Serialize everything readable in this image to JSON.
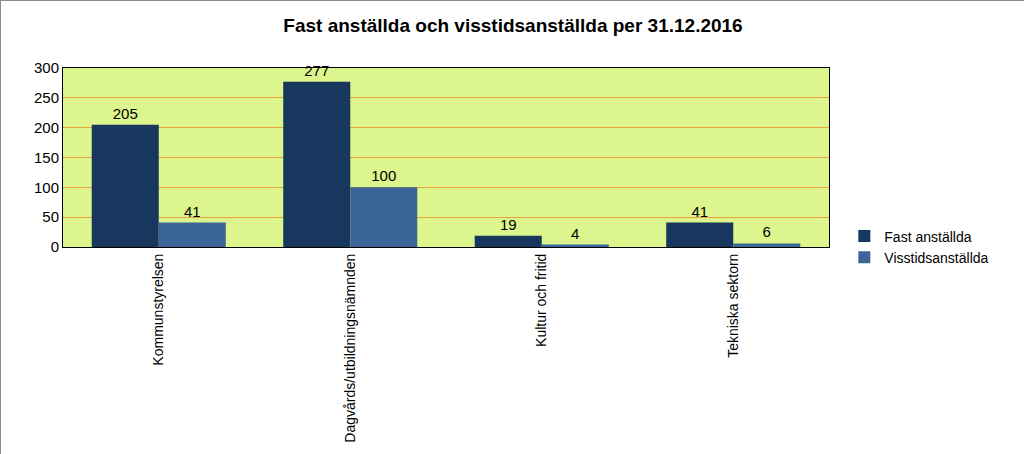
{
  "chart_data": {
    "type": "bar",
    "title": "Fast anställda och visstidsanställda per 31.12.2016",
    "categories": [
      "Kommunstyrelsen",
      "Dagvårds/utbildningsnämnden",
      "Kultur och fritid",
      "Tekniska sektorn"
    ],
    "series": [
      {
        "name": "Fast anställda",
        "color": "#17375e",
        "values": [
          205,
          277,
          19,
          41
        ]
      },
      {
        "name": "Visstidsanställda",
        "color": "#3a6596",
        "values": [
          41,
          100,
          4,
          6
        ]
      }
    ],
    "ylim": [
      0,
      300
    ],
    "yticks": [
      0,
      50,
      100,
      150,
      200,
      250,
      300
    ],
    "grid": true,
    "legend": "right",
    "data_labels": true
  }
}
